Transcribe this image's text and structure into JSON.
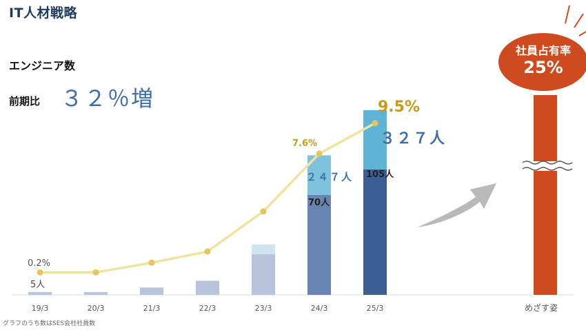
{
  "header": {
    "title": "IT人材戦略",
    "metric_label": "エンジニア数",
    "compare_label": "前期比",
    "compare_value": "３２％増"
  },
  "footnote": "グラフのうち数はSES会社社員数",
  "goal": {
    "label": "社員占有率",
    "value": "25%",
    "category_label": "めざす姿"
  },
  "colors": {
    "title": "#1f3a5f",
    "accent_blue": "#3f6fa6",
    "line": "#f0e2a0",
    "line_marker": "#e8c55a",
    "line_label": "#c89a18",
    "goal": "#cf4a1f",
    "arrow": "#b9b9b9"
  },
  "chart_data": {
    "type": "bar",
    "categories": [
      "19/3",
      "20/3",
      "21/3",
      "22/3",
      "23/3",
      "24/3",
      "25/3"
    ],
    "series": [
      {
        "values": [
          5,
          5,
          13,
          25,
          72,
          177,
          222
        ],
        "colors": [
          "#b7c4dc",
          "#b7c4dc",
          "#b7c4dc",
          "#b7c4dc",
          "#b7c4dc",
          "#6884b3",
          "#3c5e96"
        ]
      },
      {
        "values": [
          0,
          0,
          0,
          0,
          17,
          70,
          105
        ],
        "colors": [
          "#cfe4ef",
          "#cfe4ef",
          "#cfe4ef",
          "#cfe4ef",
          "#cfe4ef",
          "#7ec2dd",
          "#5fb3d6"
        ]
      }
    ],
    "line": {
      "values": [
        0.2,
        0.2,
        0.8,
        1.5,
        4.0,
        7.6,
        9.5
      ]
    },
    "bar_labels": {
      "first": "5人",
      "seg_24": "70人",
      "seg_25": "105人"
    },
    "total_labels": {
      "t24": "２４７人",
      "t25": "３２７人"
    },
    "line_labels": {
      "first": "0.2%",
      "p24": "7.6%",
      "p25": "9.5%"
    },
    "ylim": [
      0,
      400
    ],
    "line_ylim": [
      0,
      14
    ]
  }
}
